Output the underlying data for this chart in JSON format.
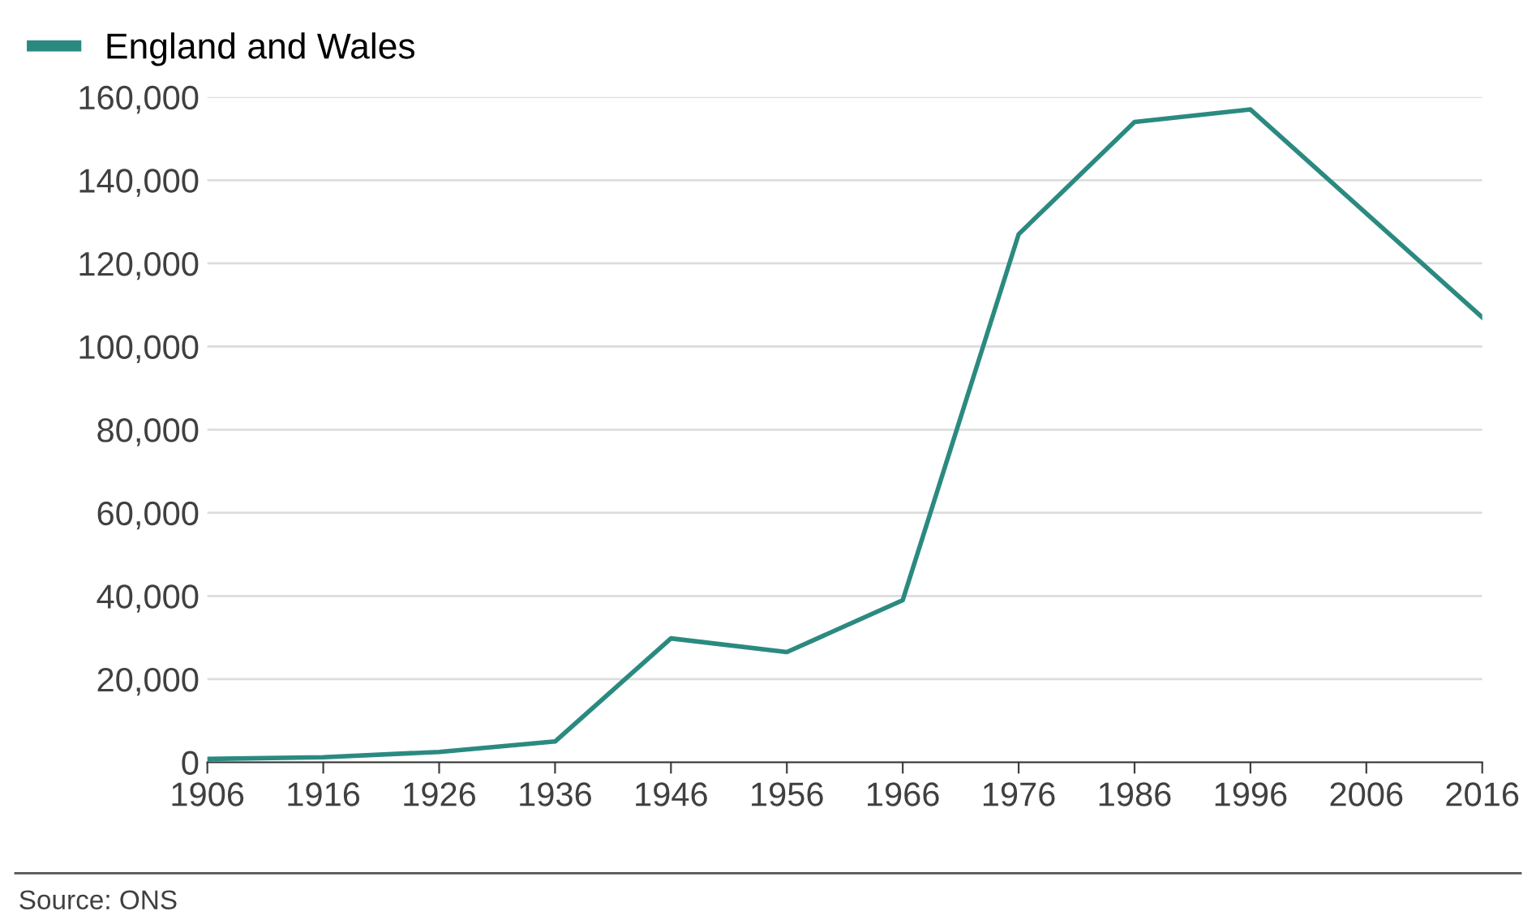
{
  "chart_data": {
    "type": "line",
    "x": [
      1906,
      1916,
      1926,
      1936,
      1946,
      1956,
      1966,
      1976,
      1986,
      1996,
      2016
    ],
    "series": [
      {
        "name": "England and Wales",
        "color": "#2b8a80",
        "values": [
          800,
          1200,
          2500,
          5000,
          29800,
          26500,
          39000,
          127000,
          154000,
          157000,
          107000
        ]
      }
    ],
    "xlim": [
      1906,
      2016
    ],
    "xticks": [
      1906,
      1916,
      1926,
      1936,
      1946,
      1956,
      1966,
      1976,
      1986,
      1996,
      2006,
      2016
    ],
    "ylim": [
      0,
      160000
    ],
    "yticks": [
      {
        "value": 0,
        "label": "0"
      },
      {
        "value": 20000,
        "label": "20,000"
      },
      {
        "value": 40000,
        "label": "40,000"
      },
      {
        "value": 60000,
        "label": "60,000"
      },
      {
        "value": 80000,
        "label": "80,000"
      },
      {
        "value": 100000,
        "label": "100,000"
      },
      {
        "value": 120000,
        "label": "120,000"
      },
      {
        "value": 140000,
        "label": "140,000"
      },
      {
        "value": 160000,
        "label": "160,000"
      }
    ],
    "grid": "y",
    "legend": "top left",
    "marker": "none",
    "line_style": "solid",
    "annotations": [
      "Source: ONS"
    ]
  }
}
